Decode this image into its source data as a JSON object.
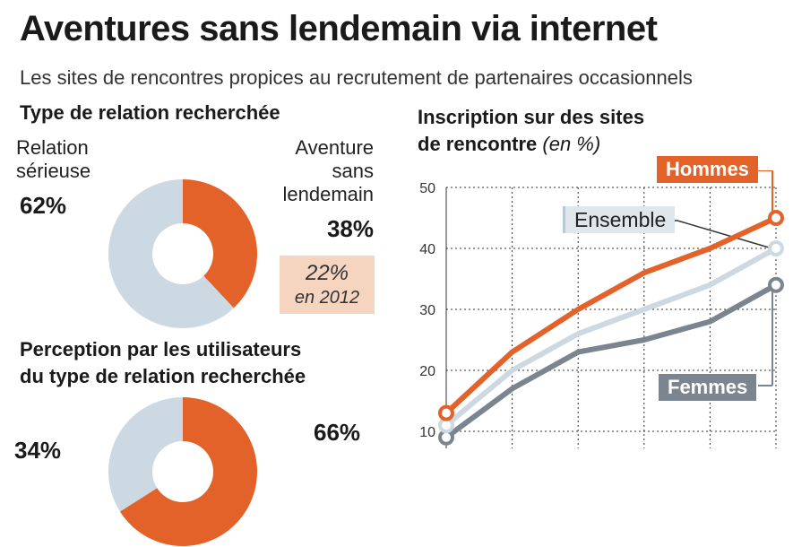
{
  "title": "Aventures sans lendemain via internet",
  "subtitle": "Les sites de rencontres propices au recrutement de partenaires occasionnels",
  "section1": {
    "title": "Type de relation recherchée",
    "serieuse_line1": "Relation",
    "serieuse_line2": "sérieuse",
    "serieuse_pct": "62%",
    "aventure_line1": "Aventure",
    "aventure_line2": "sans",
    "aventure_line3": "lendemain",
    "aventure_pct": "38%",
    "box_value": "22%",
    "box_label": "en 2012"
  },
  "section2": {
    "title_line1": "Perception par les utilisateurs",
    "title_line2": "du type de relation recherchée",
    "pct_right": "66%",
    "pct_left": "34%"
  },
  "section3": {
    "title_line1": "Inscription sur des sites",
    "title_line2": "de rencontre",
    "title_unit": "(en %)"
  },
  "colors": {
    "orange": "#e2622a",
    "lightblue": "#cdd9e2",
    "gray": "#7b8590",
    "box": "#f6d5c0"
  },
  "chart_data": [
    {
      "type": "pie",
      "title": "Type de relation recherchée",
      "slices": [
        {
          "label": "Relation sérieuse",
          "value": 62,
          "color": "#cdd9e2"
        },
        {
          "label": "Aventure sans lendemain",
          "value": 38,
          "color": "#e2622a"
        }
      ],
      "annotation": {
        "value": "22%",
        "label": "en 2012"
      }
    },
    {
      "type": "pie",
      "title": "Perception par les utilisateurs du type de relation recherchée",
      "slices": [
        {
          "value": 66,
          "color": "#e2622a"
        },
        {
          "value": 34,
          "color": "#cdd9e2"
        }
      ]
    },
    {
      "type": "line",
      "title": "Inscription sur des sites de rencontre",
      "unit": "(en %)",
      "y_ticks": [
        10,
        20,
        30,
        40,
        50
      ],
      "ylim": [
        10,
        50
      ],
      "grid": true,
      "x": [
        0,
        1,
        2,
        3,
        4,
        5
      ],
      "series": [
        {
          "name": "Hommes",
          "color": "#e2622a",
          "values": [
            13,
            23,
            30,
            36,
            40,
            45
          ]
        },
        {
          "name": "Ensemble",
          "color": "#cdd9e2",
          "values": [
            11,
            20,
            26,
            30,
            34,
            40
          ]
        },
        {
          "name": "Femmes",
          "color": "#7b8590",
          "values": [
            9,
            17,
            23,
            25,
            28,
            34
          ]
        }
      ]
    }
  ]
}
